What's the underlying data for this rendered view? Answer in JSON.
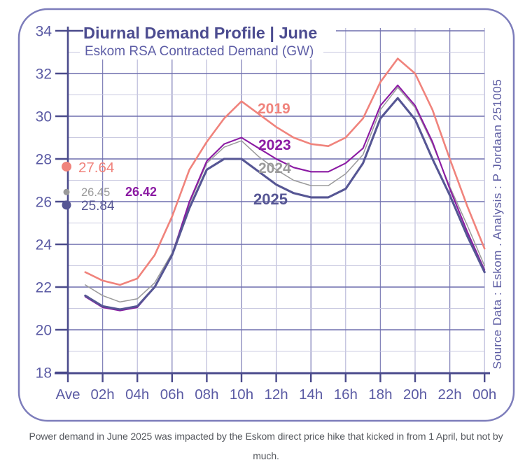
{
  "title": "Diurnal Demand Profile | June",
  "subtitle": "Eskom RSA Contracted Demand (GW)",
  "side_note": "Source Data : Eskom    .    Analysis : P Jordaan   251005",
  "caption": {
    "line1": "Power demand in June 2025 was impacted by the Eskom direct price hike that kicked in from 1 April, but not by",
    "line2": "much."
  },
  "colors": {
    "title": "#4c4c90",
    "subtitle": "#5d5da6",
    "axis": "#4b4b8c",
    "tick_labels": "#5b5ba4",
    "grid_major": "#6f6fae",
    "grid_minor": "#c9c9e0",
    "grid_v_dark": "#8484ba",
    "grid_v_light": "#aeaed2",
    "border": "#7d7dbb",
    "side_note": "#5c5ca2",
    "caption": "#55585e",
    "s2019": "#f0837c",
    "s2023": "#8b1aa3",
    "s2024": "#9a9a9a",
    "s2025": "#565694"
  },
  "chart_data": {
    "type": "line",
    "title": "Diurnal Demand Profile | June",
    "subtitle": "Eskom RSA Contracted Demand (GW)",
    "ylabel": "Demand (GW)",
    "ylim": [
      18,
      34
    ],
    "grid": true,
    "x_axis": {
      "tick_labels": [
        "Ave",
        "02h",
        "04h",
        "06h",
        "08h",
        "10h",
        "12h",
        "14h",
        "16h",
        "18h",
        "20h",
        "22h",
        "00h"
      ],
      "tick_hours": [
        0,
        2,
        4,
        6,
        8,
        10,
        12,
        14,
        16,
        18,
        20,
        22,
        24
      ]
    },
    "y_axis": {
      "tick_labels": [
        "34",
        "32",
        "30",
        "28",
        "26",
        "24",
        "22",
        "20",
        "18"
      ],
      "tick_values": [
        34,
        32,
        30,
        28,
        26,
        24,
        22,
        20,
        18
      ],
      "minor_step": 1
    },
    "hours": [
      1,
      2,
      3,
      4,
      5,
      6,
      7,
      8,
      9,
      10,
      11,
      12,
      13,
      14,
      15,
      16,
      17,
      18,
      19,
      20,
      21,
      22,
      23,
      24
    ],
    "series": [
      {
        "name": "2019",
        "color": "#f0837c",
        "average": 27.64,
        "average_label": "27.64",
        "values": [
          22.7,
          22.3,
          22.1,
          22.4,
          23.5,
          25.3,
          27.5,
          28.8,
          29.9,
          30.7,
          30.1,
          29.5,
          29.0,
          28.7,
          28.6,
          29.0,
          29.9,
          31.6,
          32.7,
          32.0,
          30.3,
          28.0,
          25.8,
          23.8
        ]
      },
      {
        "name": "2023",
        "color": "#8b1aa3",
        "average": 26.42,
        "average_label": "26.42",
        "values": [
          21.55,
          21.05,
          20.9,
          21.05,
          22.0,
          23.5,
          26.0,
          27.9,
          28.7,
          29.0,
          28.5,
          28.0,
          27.6,
          27.4,
          27.4,
          27.8,
          28.5,
          30.5,
          31.45,
          30.5,
          28.8,
          26.6,
          24.6,
          22.8
        ]
      },
      {
        "name": "2024",
        "color": "#9a9a9a",
        "average": 26.45,
        "average_label": "26.45",
        "values": [
          22.1,
          21.6,
          21.3,
          21.45,
          22.2,
          23.6,
          25.9,
          27.8,
          28.55,
          28.85,
          28.1,
          27.5,
          27.0,
          26.75,
          26.75,
          27.3,
          28.2,
          30.3,
          31.35,
          30.4,
          28.7,
          26.7,
          24.9,
          23.0
        ]
      },
      {
        "name": "2025",
        "color": "#565694",
        "average": 25.84,
        "average_label": "25.84",
        "values": [
          21.6,
          21.1,
          20.95,
          21.1,
          22.0,
          23.5,
          25.7,
          27.5,
          28.0,
          28.0,
          27.4,
          26.8,
          26.4,
          26.2,
          26.2,
          26.6,
          27.8,
          29.9,
          30.85,
          29.85,
          28.0,
          26.3,
          24.4,
          22.7
        ]
      }
    ]
  }
}
